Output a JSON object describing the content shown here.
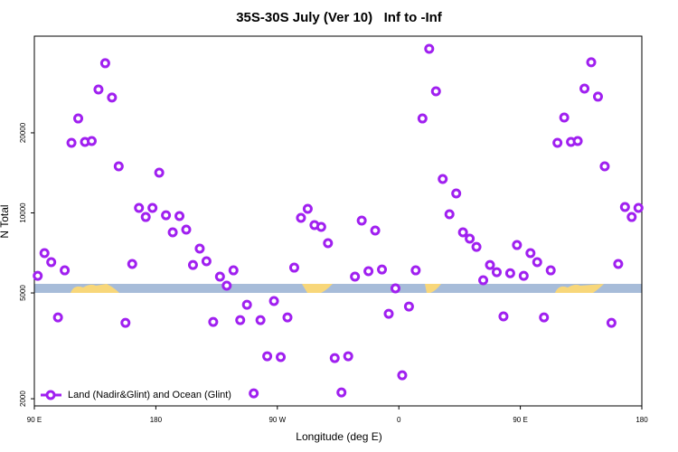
{
  "chart_data": {
    "type": "scatter",
    "title": "35S-30S July (Ver 10)   Inf to -Inf",
    "x_label": "Longitude (deg E)",
    "y_label": "N Total",
    "log_y": true,
    "legend": "bottom-left",
    "x": [
      92.5,
      97.5,
      102.5,
      107.5,
      112.5,
      117.5,
      122.5,
      127.5,
      132.5,
      137.5,
      142.5,
      147.5,
      152.5,
      157.5,
      162.5,
      167.5,
      172.5,
      177.5,
      182.5,
      187.5,
      192.5,
      197.5,
      202.5,
      207.5,
      212.5,
      217.5,
      222.5,
      227.5,
      232.5,
      237.5,
      242.5,
      247.5,
      252.5,
      257.5,
      262.5,
      267.5,
      272.5,
      277.5,
      282.5,
      287.5,
      292.5,
      297.5,
      302.5,
      307.5,
      312.5,
      317.5,
      322.5,
      327.5,
      332.5,
      337.5,
      342.5,
      347.5,
      352.5,
      357.5,
      362.5,
      367.5,
      372.5,
      377.5,
      382.5,
      387.5,
      392.5,
      397.5,
      402.5,
      407.5,
      412.5,
      417.5,
      422.5,
      427.5,
      432.5,
      437.5,
      442.5,
      447.5,
      452.5,
      457.5,
      462.5,
      467.5,
      472.5,
      477.5,
      482.5,
      487.5,
      492.5,
      497.5,
      502.5,
      507.5,
      512.5,
      517.5,
      522.5,
      527.5,
      532.5,
      537.5
    ],
    "series": [
      {
        "name": "Land (Nadir&Glint) and Ocean (Glint)",
        "color": "#a020f0",
        "values": [
          5800,
          7060,
          6525,
          4045,
          6080,
          18350,
          22650,
          18490,
          18630,
          29120,
          36550,
          27150,
          14970,
          3860,
          6425,
          10440,
          9650,
          10440,
          14170,
          9800,
          8450,
          9730,
          8650,
          6370,
          7340,
          6580,
          3890,
          5760,
          5325,
          6080,
          3950,
          4515,
          2095,
          3950,
          2890,
          4660,
          2870,
          4045,
          6225,
          9580,
          10360,
          8995,
          8855,
          7695,
          2845,
          2112,
          2890,
          5760,
          9355,
          6035,
          8585,
          6125,
          4175,
          5200,
          2450,
          4445,
          6080,
          22650,
          41420,
          28660,
          13410,
          9880,
          11830,
          8450,
          8000,
          7450,
          5580,
          6370,
          5985,
          4080,
          5930,
          7570,
          5800,
          7060,
          6525,
          4045,
          6080,
          18350,
          22830,
          18490,
          18630,
          29350,
          36840,
          27360,
          14970,
          3860,
          6425,
          10520,
          9650,
          10440
        ]
      }
    ],
    "xlim": [
      90,
      540
    ],
    "xticks": [
      {
        "value": 90,
        "label": "90 E"
      },
      180,
      {
        "value": 270,
        "label": "90 W"
      },
      {
        "value": 360,
        "label": "0"
      },
      {
        "value": 450,
        "label": "90 E"
      },
      {
        "value": 540,
        "label": "180"
      }
    ],
    "ylim": [
      1880,
      46200
    ],
    "yticks": [
      2000,
      5000,
      10000,
      20000
    ]
  }
}
